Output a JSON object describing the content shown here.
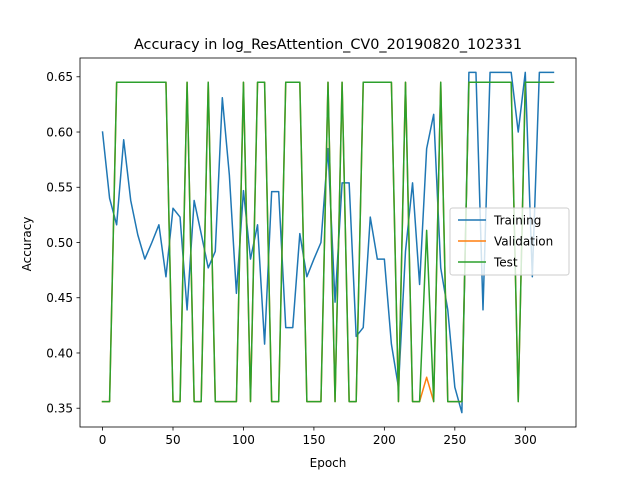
{
  "chart_data": {
    "type": "line",
    "title": "Accuracy in log_ResAttention_CV0_20190820_102331",
    "xlabel": "Epoch",
    "ylabel": "Accuracy",
    "xlim": [
      -16,
      336
    ],
    "ylim": [
      0.333,
      0.667
    ],
    "xticks": [
      0,
      50,
      100,
      150,
      200,
      250,
      300
    ],
    "yticks": [
      0.35,
      0.4,
      0.45,
      0.5,
      0.55,
      0.6,
      0.65
    ],
    "ytick_labels": [
      "0.35",
      "0.40",
      "0.45",
      "0.50",
      "0.55",
      "0.60",
      "0.65"
    ],
    "grid": false,
    "legend_position": "center-right",
    "series": [
      {
        "name": "Training",
        "color": "#1f77b4",
        "x": [
          0,
          5,
          10,
          15,
          20,
          25,
          30,
          35,
          40,
          45,
          50,
          55,
          60,
          65,
          70,
          75,
          80,
          85,
          90,
          95,
          100,
          105,
          110,
          115,
          120,
          125,
          130,
          135,
          140,
          145,
          150,
          155,
          160,
          165,
          170,
          175,
          180,
          185,
          190,
          195,
          200,
          205,
          210,
          215,
          220,
          225,
          230,
          235,
          240,
          245,
          250,
          255,
          260,
          265,
          270,
          275,
          280,
          285,
          290,
          295,
          300,
          305,
          310,
          315,
          320
        ],
        "y": [
          0.6,
          0.54,
          0.516,
          0.593,
          0.538,
          0.507,
          0.485,
          0.5,
          0.516,
          0.469,
          0.531,
          0.523,
          0.439,
          0.538,
          0.508,
          0.477,
          0.492,
          0.631,
          0.561,
          0.454,
          0.547,
          0.485,
          0.516,
          0.408,
          0.546,
          0.546,
          0.423,
          0.423,
          0.508,
          0.469,
          0.485,
          0.5,
          0.585,
          0.446,
          0.554,
          0.554,
          0.415,
          0.423,
          0.523,
          0.485,
          0.485,
          0.408,
          0.369,
          0.492,
          0.554,
          0.462,
          0.585,
          0.616,
          0.477,
          0.439,
          0.369,
          0.346,
          0.654,
          0.654,
          0.439,
          0.654,
          0.654,
          0.654,
          0.654,
          0.6,
          0.654,
          0.469,
          0.654,
          0.654,
          0.654
        ]
      },
      {
        "name": "Validation",
        "color": "#ff7f0e",
        "x": [
          0,
          5,
          10,
          15,
          20,
          25,
          30,
          35,
          40,
          45,
          50,
          55,
          60,
          65,
          70,
          75,
          80,
          85,
          90,
          95,
          100,
          105,
          110,
          115,
          120,
          125,
          130,
          135,
          140,
          145,
          150,
          155,
          160,
          165,
          170,
          175,
          180,
          185,
          190,
          195,
          200,
          205,
          210,
          215,
          220,
          225,
          230,
          235,
          240,
          245,
          250,
          255,
          260,
          265,
          270,
          275,
          280,
          285,
          290,
          295,
          300,
          305,
          310,
          315,
          320
        ],
        "y": [
          0.356,
          0.356,
          0.645,
          0.645,
          0.645,
          0.645,
          0.645,
          0.645,
          0.645,
          0.645,
          0.356,
          0.356,
          0.645,
          0.356,
          0.356,
          0.645,
          0.356,
          0.356,
          0.356,
          0.356,
          0.645,
          0.356,
          0.645,
          0.645,
          0.356,
          0.356,
          0.645,
          0.645,
          0.645,
          0.356,
          0.356,
          0.356,
          0.645,
          0.356,
          0.645,
          0.356,
          0.356,
          0.645,
          0.645,
          0.645,
          0.645,
          0.645,
          0.356,
          0.645,
          0.356,
          0.356,
          0.378,
          0.356,
          0.645,
          0.356,
          0.356,
          0.356,
          0.645,
          0.645,
          0.645,
          0.645,
          0.645,
          0.645,
          0.645,
          0.356,
          0.645,
          0.645,
          0.645,
          0.645,
          0.645
        ]
      },
      {
        "name": "Test",
        "color": "#2ca02c",
        "x": [
          0,
          5,
          10,
          15,
          20,
          25,
          30,
          35,
          40,
          45,
          50,
          55,
          60,
          65,
          70,
          75,
          80,
          85,
          90,
          95,
          100,
          105,
          110,
          115,
          120,
          125,
          130,
          135,
          140,
          145,
          150,
          155,
          160,
          165,
          170,
          175,
          180,
          185,
          190,
          195,
          200,
          205,
          210,
          215,
          220,
          225,
          230,
          235,
          240,
          245,
          250,
          255,
          260,
          265,
          270,
          275,
          280,
          285,
          290,
          295,
          300,
          305,
          310,
          315,
          320
        ],
        "y": [
          0.356,
          0.356,
          0.645,
          0.645,
          0.645,
          0.645,
          0.645,
          0.645,
          0.645,
          0.645,
          0.356,
          0.356,
          0.645,
          0.356,
          0.356,
          0.645,
          0.356,
          0.356,
          0.356,
          0.356,
          0.645,
          0.356,
          0.645,
          0.645,
          0.356,
          0.356,
          0.645,
          0.645,
          0.645,
          0.356,
          0.356,
          0.356,
          0.645,
          0.356,
          0.645,
          0.356,
          0.356,
          0.645,
          0.645,
          0.645,
          0.645,
          0.645,
          0.356,
          0.645,
          0.356,
          0.356,
          0.511,
          0.356,
          0.645,
          0.356,
          0.356,
          0.356,
          0.645,
          0.645,
          0.645,
          0.645,
          0.645,
          0.645,
          0.645,
          0.356,
          0.645,
          0.645,
          0.645,
          0.645,
          0.645
        ]
      }
    ]
  }
}
